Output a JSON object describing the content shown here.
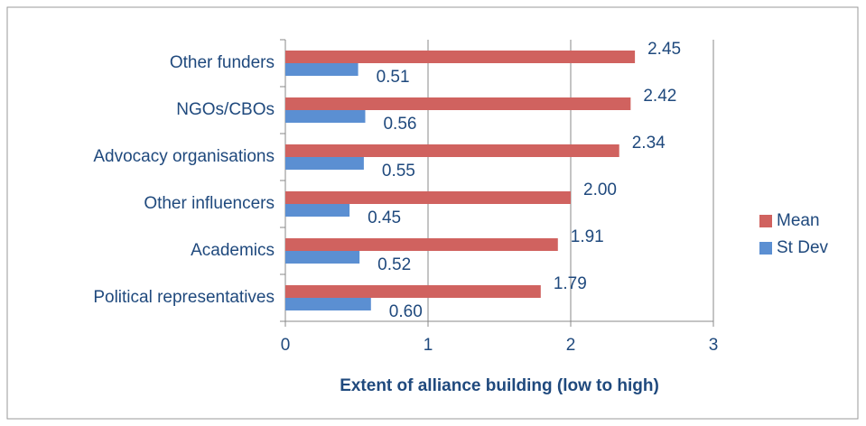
{
  "chart_data": {
    "type": "hbar",
    "x_label": "Extent of alliance building (low to high)",
    "categories": [
      "Other funders",
      "NGOs/CBOs",
      "Advocacy organisations",
      "Other influencers",
      "Academics",
      "Political representatives"
    ],
    "series": [
      {
        "name": "Mean",
        "color": "#d0625f",
        "values": [
          2.45,
          2.42,
          2.34,
          2.0,
          1.91,
          1.79
        ],
        "value_labels": [
          "2.45",
          "2.42",
          "2.34",
          "2.00",
          "1.91",
          "1.79"
        ]
      },
      {
        "name": "St Dev",
        "color": "#5b8fd2",
        "values": [
          0.51,
          0.56,
          0.55,
          0.45,
          0.52,
          0.6
        ],
        "value_labels": [
          "0.51",
          "0.56",
          "0.55",
          "0.45",
          "0.52",
          "0.60"
        ]
      }
    ],
    "xlim": [
      0,
      3
    ],
    "xticks": [
      0,
      1,
      2,
      3
    ],
    "grid": true,
    "legend": "right"
  }
}
